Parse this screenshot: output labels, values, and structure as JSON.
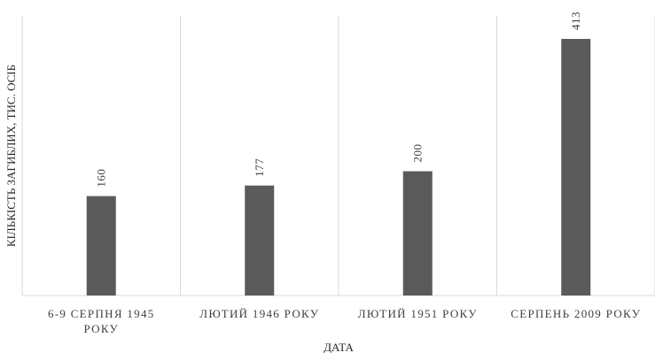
{
  "chart_data": {
    "type": "bar",
    "categories": [
      [
        "6-9 СЕРПНЯ 1945",
        "РОКУ"
      ],
      [
        "ЛЮТИЙ 1946 РОКУ"
      ],
      [
        "ЛЮТИЙ 1951 РОКУ"
      ],
      [
        "СЕРПЕНЬ 2009 РОКУ"
      ]
    ],
    "values": [
      160,
      177,
      200,
      413
    ],
    "xlabel": "ДАТА",
    "ylabel": "КІЛЬКІСТЬ ЗАГИБЛИХ, ТИС. ОСІБ",
    "ylim": [
      0,
      450
    ],
    "y_axis_visible": false,
    "vertical_grid": true,
    "data_labels": true,
    "data_label_rotation": "vertical",
    "colors": {
      "bar": "#5a5a5a",
      "grid": "#d9d9d9",
      "text": "#404040"
    }
  }
}
